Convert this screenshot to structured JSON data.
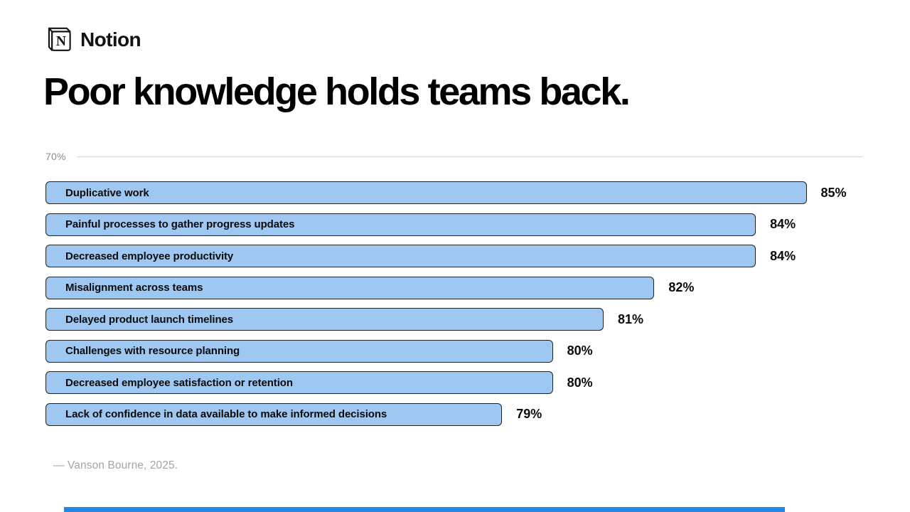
{
  "brand": {
    "name": "Notion",
    "logo": "notion-cube-logo"
  },
  "title": "Poor knowledge holds teams back.",
  "source": "— Vanson Bourne, 2025.",
  "colors": {
    "background": "#ffffff",
    "text": "#050505",
    "bar_fill": "#9ec7f2",
    "bar_border": "#23221e",
    "axis_label_gray": "#8b8b87",
    "axis_line_gray": "#d6d6d3",
    "source_gray": "#a4a4a1",
    "accent_blue": "#2489e5"
  },
  "chart_data": {
    "type": "bar",
    "orientation": "horizontal",
    "title": "Poor knowledge holds teams back.",
    "axis_label": "70%",
    "axis_min": 70,
    "axis_max": 86.1,
    "grid": false,
    "legend": false,
    "value_suffix": "%",
    "categories": [
      "Duplicative work",
      "Painful processes to gather progress updates",
      "Decreased employee productivity",
      "Misalignment across teams",
      "Delayed product launch timelines",
      "Challenges with resource planning",
      "Decreased employee satisfaction or retention",
      "Lack of confidence in data available to make informed decisions"
    ],
    "values": [
      85,
      84,
      84,
      82,
      81,
      80,
      80,
      79
    ],
    "source": "— Vanson Bourne, 2025."
  }
}
